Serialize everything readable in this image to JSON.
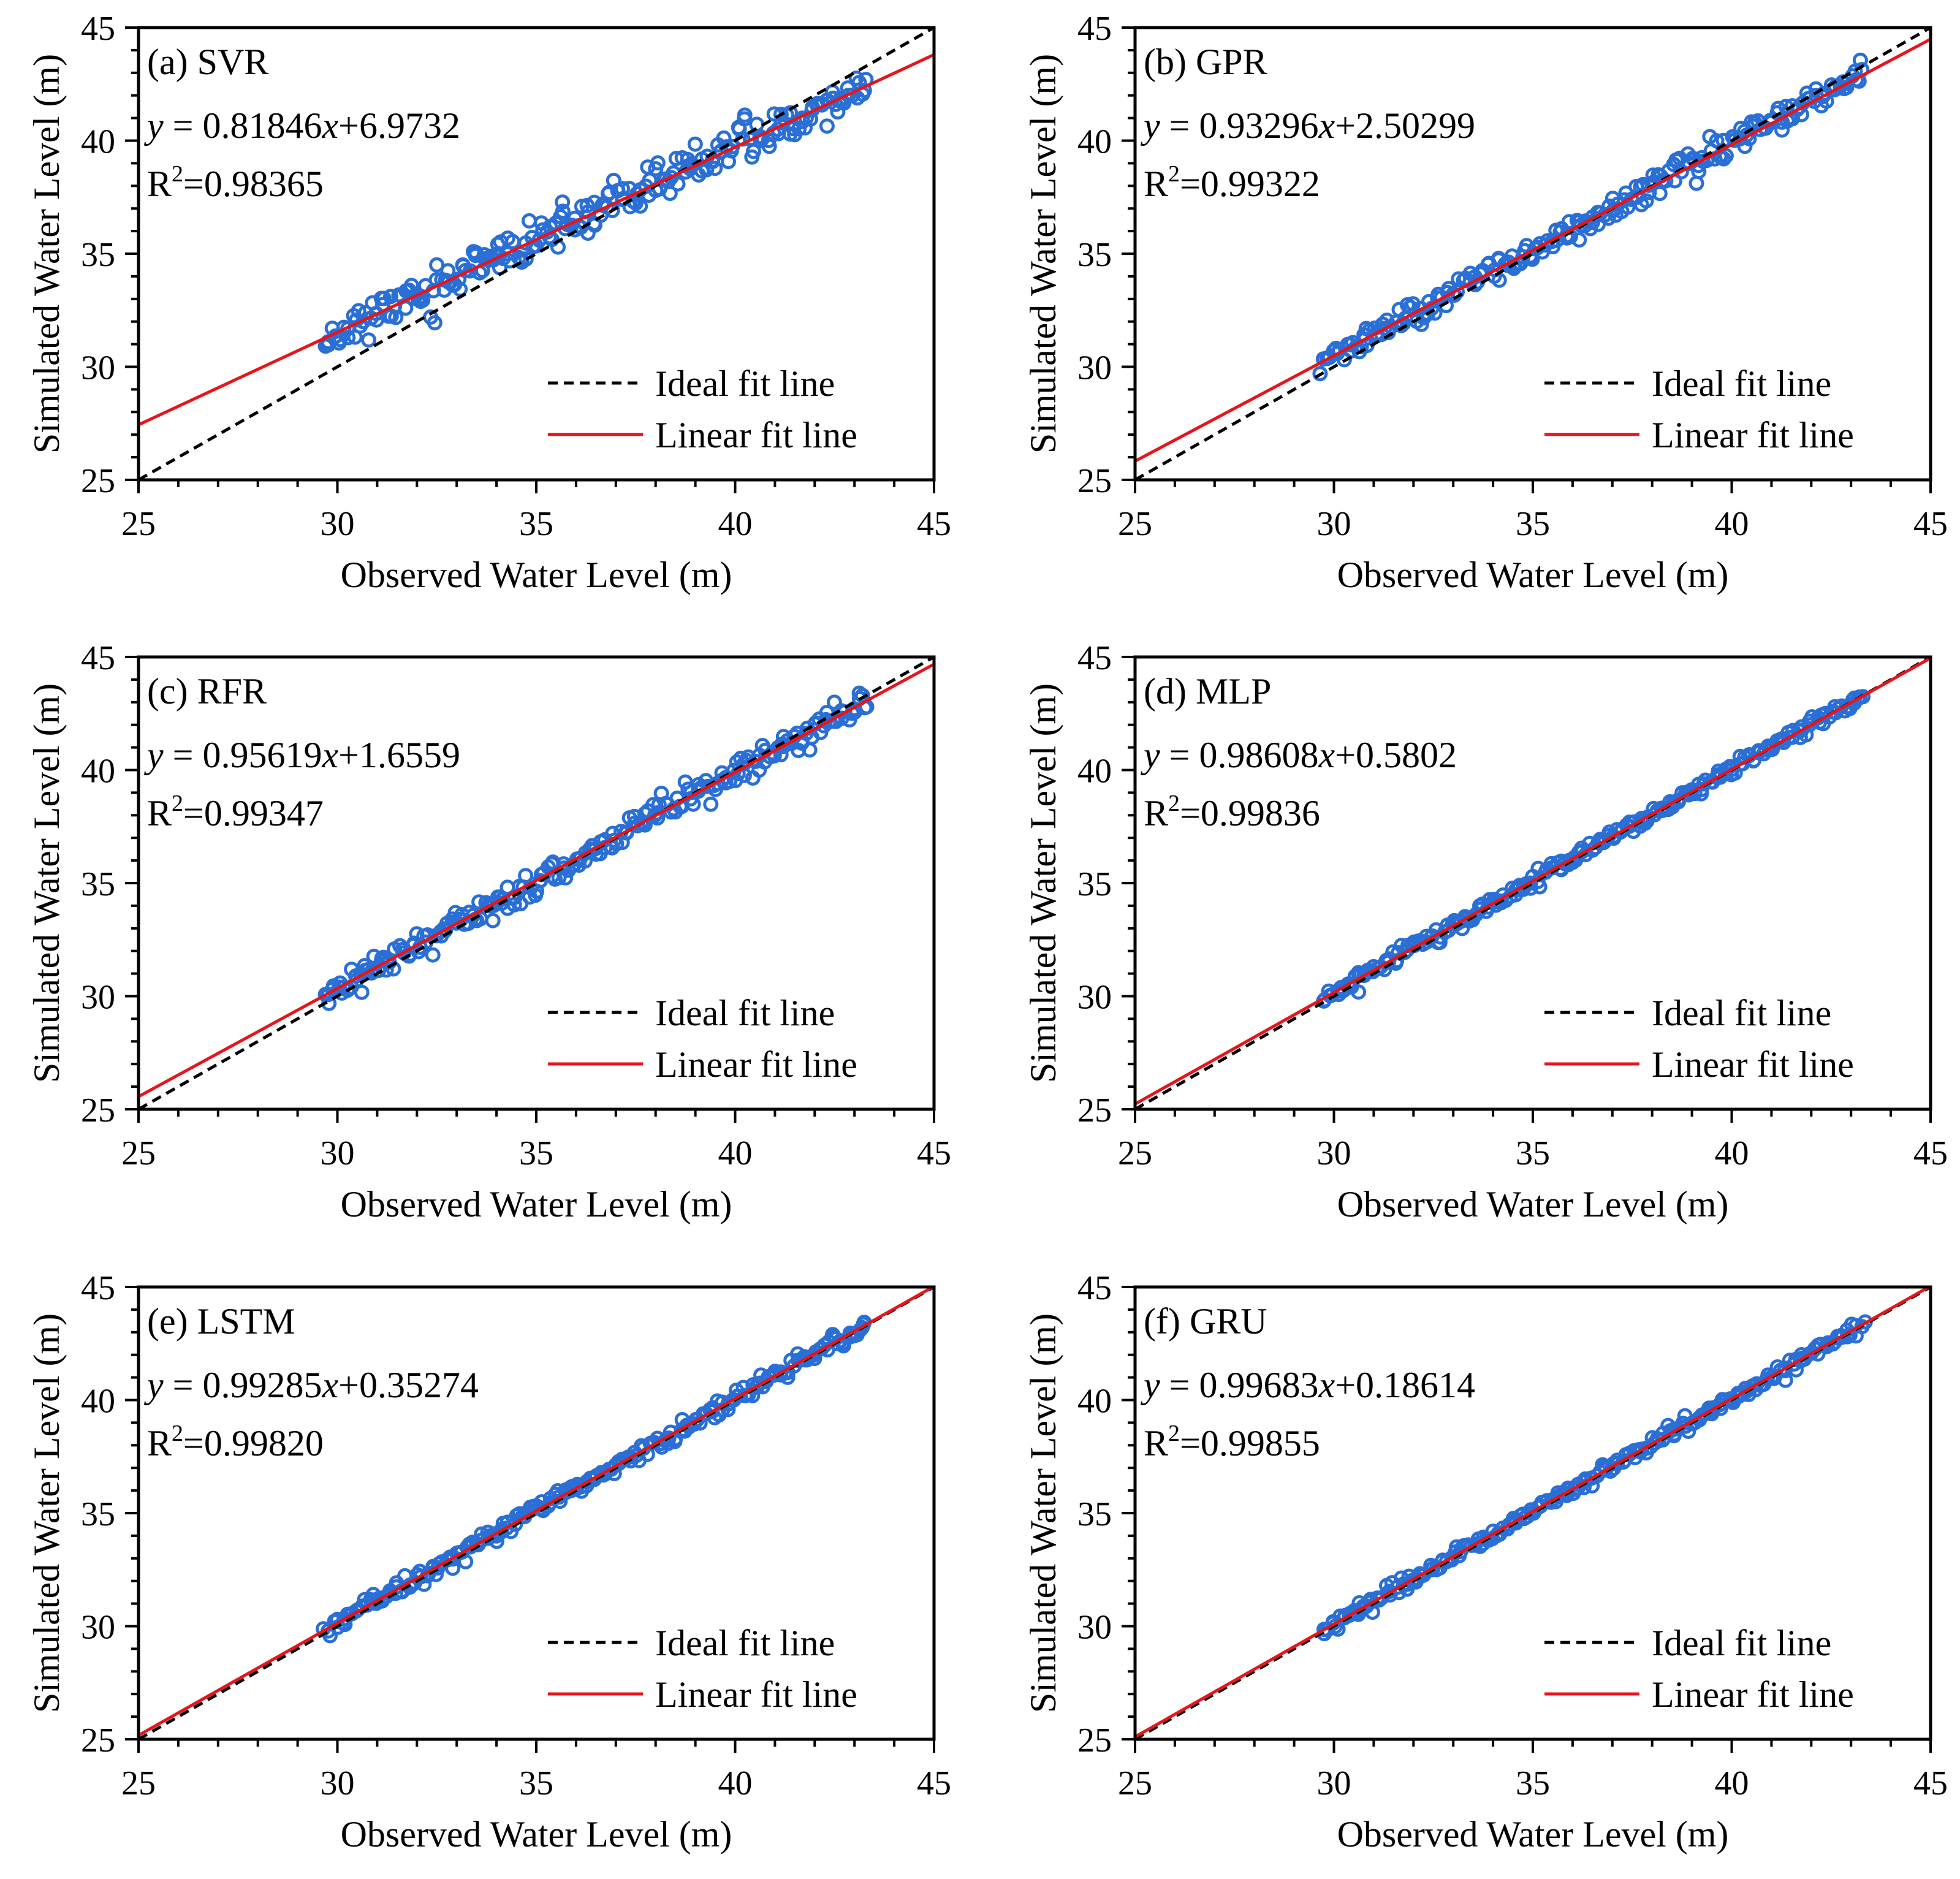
{
  "figure": {
    "legend_ideal": "Ideal fit line",
    "legend_linear": "Linear fit line",
    "colors": {
      "points": "#2a6fd6",
      "linear": "#e8141c",
      "ideal": "#000000",
      "axes": "#000000"
    }
  },
  "chart_data": [
    {
      "type": "scatter",
      "panel": "(a)",
      "model": "SVR",
      "label": "(a) SVR",
      "equation": {
        "y": "y",
        "eq": " = 0.81846",
        "x": "x",
        "tail": "+6.9732"
      },
      "r2": {
        "R": "R",
        "sup": "2",
        "val": "=0.98365"
      },
      "slope": 0.81846,
      "intercept": 6.9732,
      "r2_value": 0.98365,
      "xlabel": "Observed Water Level (m)",
      "ylabel": "Simulated Water Level (m)",
      "xlim": [
        25,
        45
      ],
      "ylim": [
        25,
        45
      ],
      "xticks": [
        "25",
        "30",
        "35",
        "40",
        "45"
      ],
      "yticks": [
        "25",
        "30",
        "35",
        "40",
        "45"
      ],
      "points_x_range": [
        29.7,
        43.3
      ],
      "point_count": 230,
      "noise_sd": 0.42,
      "seed": 11
    },
    {
      "type": "scatter",
      "panel": "(b)",
      "model": "GPR",
      "label": "(b) GPR",
      "equation": {
        "y": "y",
        "eq": " = 0.93296",
        "x": "x",
        "tail": "+2.50299"
      },
      "r2": {
        "R": "R",
        "sup": "2",
        "val": "=0.99322"
      },
      "slope": 0.93296,
      "intercept": 2.50299,
      "r2_value": 0.99322,
      "xlabel": "Observed Water Level (m)",
      "ylabel": "Simulated Water Level (m)",
      "xlim": [
        25,
        45
      ],
      "ylim": [
        25,
        45
      ],
      "xticks": [
        "25",
        "30",
        "35",
        "40",
        "45"
      ],
      "yticks": [
        "25",
        "30",
        "35",
        "40",
        "45"
      ],
      "points_x_range": [
        29.7,
        43.3
      ],
      "point_count": 230,
      "noise_sd": 0.3,
      "seed": 23
    },
    {
      "type": "scatter",
      "panel": "(c)",
      "model": "RFR",
      "label": "(c) RFR",
      "equation": {
        "y": "y",
        "eq": " = 0.95619",
        "x": "x",
        "tail": "+1.6559"
      },
      "r2": {
        "R": "R",
        "sup": "2",
        "val": "=0.99347"
      },
      "slope": 0.95619,
      "intercept": 1.6559,
      "r2_value": 0.99347,
      "xlabel": "Observed Water Level (m)",
      "ylabel": "Simulated Water Level (m)",
      "xlim": [
        25,
        45
      ],
      "ylim": [
        25,
        45
      ],
      "xticks": [
        "25",
        "30",
        "35",
        "40",
        "45"
      ],
      "yticks": [
        "25",
        "30",
        "35",
        "40",
        "45"
      ],
      "points_x_range": [
        29.7,
        43.3
      ],
      "point_count": 230,
      "noise_sd": 0.3,
      "seed": 37
    },
    {
      "type": "scatter",
      "panel": "(d)",
      "model": "MLP",
      "label": "(d) MLP",
      "equation": {
        "y": "y",
        "eq": " = 0.98608",
        "x": "x",
        "tail": "+0.5802"
      },
      "r2": {
        "R": "R",
        "sup": "2",
        "val": "=0.99836"
      },
      "slope": 0.98608,
      "intercept": 0.5802,
      "r2_value": 0.99836,
      "xlabel": "Observed Water Level (m)",
      "ylabel": "Simulated Water Level (m)",
      "xlim": [
        25,
        45
      ],
      "ylim": [
        25,
        45
      ],
      "xticks": [
        "25",
        "30",
        "35",
        "40",
        "45"
      ],
      "yticks": [
        "25",
        "30",
        "35",
        "40",
        "45"
      ],
      "points_x_range": [
        29.7,
        43.3
      ],
      "point_count": 230,
      "noise_sd": 0.16,
      "seed": 41
    },
    {
      "type": "scatter",
      "panel": "(e)",
      "model": "LSTM",
      "label": "(e) LSTM",
      "equation": {
        "y": "y",
        "eq": " = 0.99285",
        "x": "x",
        "tail": "+0.35274"
      },
      "r2": {
        "R": "R",
        "sup": "2",
        "val": "=0.99820"
      },
      "slope": 0.99285,
      "intercept": 0.35274,
      "r2_value": 0.9982,
      "xlabel": "Observed Water Level (m)",
      "ylabel": "Simulated Water Level (m)",
      "xlim": [
        25,
        45
      ],
      "ylim": [
        25,
        45
      ],
      "xticks": [
        "25",
        "30",
        "35",
        "40",
        "45"
      ],
      "yticks": [
        "25",
        "30",
        "35",
        "40",
        "45"
      ],
      "points_x_range": [
        29.7,
        43.3
      ],
      "point_count": 230,
      "noise_sd": 0.17,
      "seed": 53
    },
    {
      "type": "scatter",
      "panel": "(f)",
      "model": "GRU",
      "label": "(f) GRU",
      "equation": {
        "y": "y",
        "eq": " = 0.99683",
        "x": "x",
        "tail": "+0.18614"
      },
      "r2": {
        "R": "R",
        "sup": "2",
        "val": "=0.99855"
      },
      "slope": 0.99683,
      "intercept": 0.18614,
      "r2_value": 0.99855,
      "xlabel": "Observed Water Level (m)",
      "ylabel": "Simulated Water Level (m)",
      "xlim": [
        25,
        45
      ],
      "ylim": [
        25,
        45
      ],
      "xticks": [
        "25",
        "30",
        "35",
        "40",
        "45"
      ],
      "yticks": [
        "25",
        "30",
        "35",
        "40",
        "45"
      ],
      "points_x_range": [
        29.7,
        43.3
      ],
      "point_count": 230,
      "noise_sd": 0.15,
      "seed": 67
    }
  ]
}
